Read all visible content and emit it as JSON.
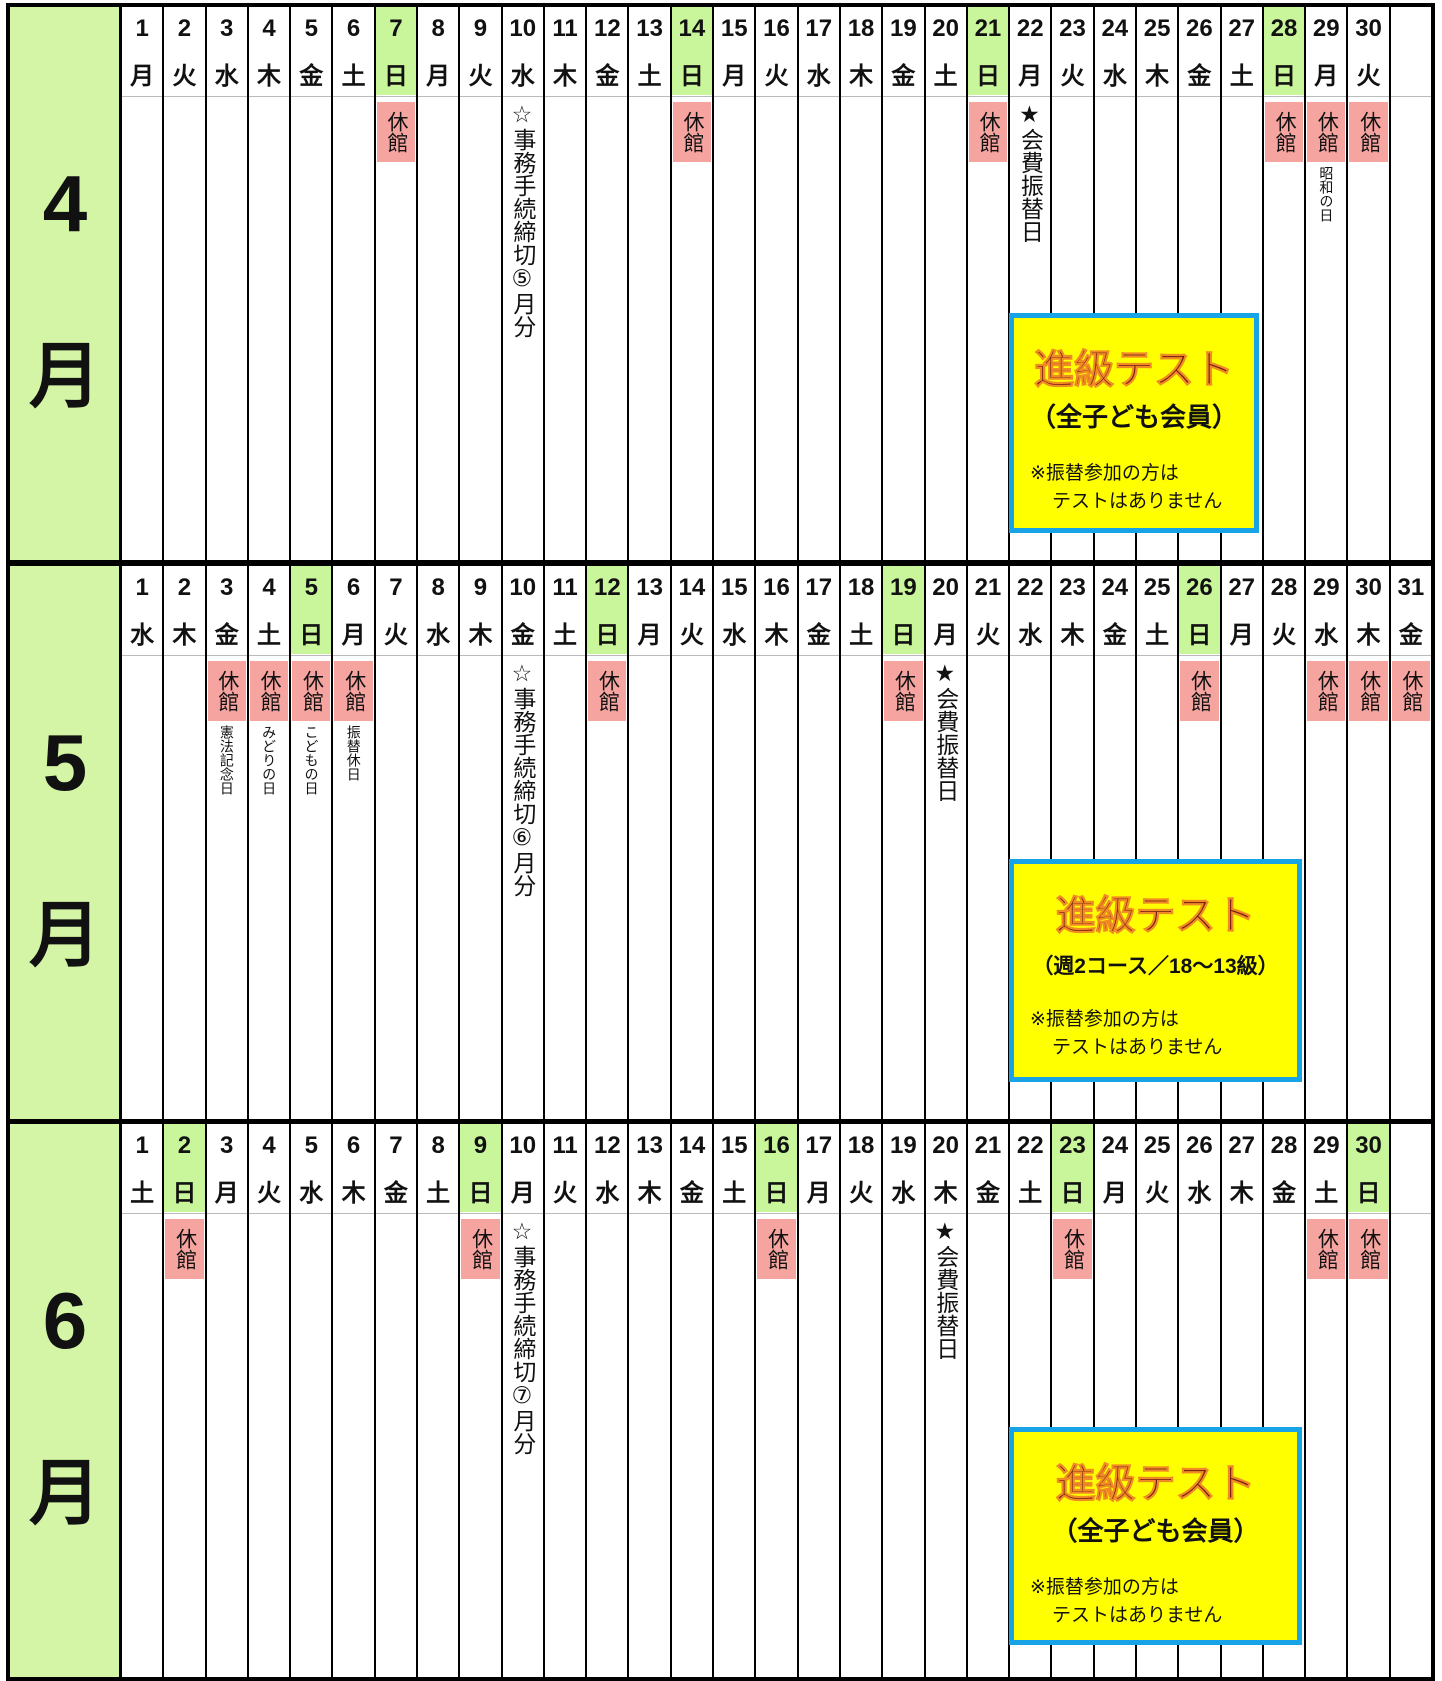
{
  "months": [
    {
      "label": "4",
      "unit": "月",
      "days": [
        {
          "n": "1",
          "w": "月"
        },
        {
          "n": "2",
          "w": "火"
        },
        {
          "n": "3",
          "w": "水"
        },
        {
          "n": "4",
          "w": "木"
        },
        {
          "n": "5",
          "w": "金"
        },
        {
          "n": "6",
          "w": "土"
        },
        {
          "n": "7",
          "w": "日",
          "highlight": true,
          "closed": "休館"
        },
        {
          "n": "8",
          "w": "月"
        },
        {
          "n": "9",
          "w": "火"
        },
        {
          "n": "10",
          "w": "水",
          "note": "☆事務手続締切⑤月分"
        },
        {
          "n": "11",
          "w": "木"
        },
        {
          "n": "12",
          "w": "金"
        },
        {
          "n": "13",
          "w": "土"
        },
        {
          "n": "14",
          "w": "日",
          "highlight": true,
          "closed": "休館"
        },
        {
          "n": "15",
          "w": "月"
        },
        {
          "n": "16",
          "w": "火"
        },
        {
          "n": "17",
          "w": "水"
        },
        {
          "n": "18",
          "w": "木"
        },
        {
          "n": "19",
          "w": "金"
        },
        {
          "n": "20",
          "w": "土"
        },
        {
          "n": "21",
          "w": "日",
          "highlight": true,
          "closed": "休館"
        },
        {
          "n": "22",
          "w": "月",
          "note": "★会費振替日"
        },
        {
          "n": "23",
          "w": "火"
        },
        {
          "n": "24",
          "w": "水"
        },
        {
          "n": "25",
          "w": "木"
        },
        {
          "n": "26",
          "w": "金"
        },
        {
          "n": "27",
          "w": "土"
        },
        {
          "n": "28",
          "w": "日",
          "highlight": true,
          "closed": "休館"
        },
        {
          "n": "29",
          "w": "月",
          "closed": "休館",
          "holiday": "昭和の日"
        },
        {
          "n": "30",
          "w": "火",
          "closed": "休館"
        }
      ],
      "box": {
        "title": "進級テスト",
        "subtitle": "（全子ども会員）",
        "note_lines": [
          "※振替参加の方は",
          "テストはありません"
        ]
      }
    },
    {
      "label": "5",
      "unit": "月",
      "days": [
        {
          "n": "1",
          "w": "水"
        },
        {
          "n": "2",
          "w": "木"
        },
        {
          "n": "3",
          "w": "金",
          "closed": "休館",
          "holiday": "憲法記念日"
        },
        {
          "n": "4",
          "w": "土",
          "closed": "休館",
          "holiday": "みどりの日"
        },
        {
          "n": "5",
          "w": "日",
          "highlight": true,
          "closed": "休館",
          "holiday": "こどもの日"
        },
        {
          "n": "6",
          "w": "月",
          "closed": "休館",
          "holiday": "振替休日"
        },
        {
          "n": "7",
          "w": "火"
        },
        {
          "n": "8",
          "w": "水"
        },
        {
          "n": "9",
          "w": "木"
        },
        {
          "n": "10",
          "w": "金",
          "note": "☆事務手続締切⑥月分"
        },
        {
          "n": "11",
          "w": "土"
        },
        {
          "n": "12",
          "w": "日",
          "highlight": true,
          "closed": "休館"
        },
        {
          "n": "13",
          "w": "月"
        },
        {
          "n": "14",
          "w": "火"
        },
        {
          "n": "15",
          "w": "水"
        },
        {
          "n": "16",
          "w": "木"
        },
        {
          "n": "17",
          "w": "金"
        },
        {
          "n": "18",
          "w": "土"
        },
        {
          "n": "19",
          "w": "日",
          "highlight": true,
          "closed": "休館"
        },
        {
          "n": "20",
          "w": "月",
          "note": "★会費振替日"
        },
        {
          "n": "21",
          "w": "火"
        },
        {
          "n": "22",
          "w": "水"
        },
        {
          "n": "23",
          "w": "木"
        },
        {
          "n": "24",
          "w": "金"
        },
        {
          "n": "25",
          "w": "土"
        },
        {
          "n": "26",
          "w": "日",
          "highlight": true,
          "closed": "休館"
        },
        {
          "n": "27",
          "w": "月"
        },
        {
          "n": "28",
          "w": "火"
        },
        {
          "n": "29",
          "w": "水",
          "closed": "休館"
        },
        {
          "n": "30",
          "w": "木",
          "closed": "休館"
        },
        {
          "n": "31",
          "w": "金",
          "closed": "休館"
        }
      ],
      "box": {
        "title": "進級テスト",
        "subtitle": "（週2コース／18～13級）",
        "note_lines": [
          "※振替参加の方は",
          "テストはありません"
        ]
      }
    },
    {
      "label": "6",
      "unit": "月",
      "days": [
        {
          "n": "1",
          "w": "土"
        },
        {
          "n": "2",
          "w": "日",
          "highlight": true,
          "closed": "休館"
        },
        {
          "n": "3",
          "w": "月"
        },
        {
          "n": "4",
          "w": "火"
        },
        {
          "n": "5",
          "w": "水"
        },
        {
          "n": "6",
          "w": "木"
        },
        {
          "n": "7",
          "w": "金"
        },
        {
          "n": "8",
          "w": "土"
        },
        {
          "n": "9",
          "w": "日",
          "highlight": true,
          "closed": "休館"
        },
        {
          "n": "10",
          "w": "月",
          "note": "☆事務手続締切⑦月分"
        },
        {
          "n": "11",
          "w": "火"
        },
        {
          "n": "12",
          "w": "水"
        },
        {
          "n": "13",
          "w": "木"
        },
        {
          "n": "14",
          "w": "金"
        },
        {
          "n": "15",
          "w": "土"
        },
        {
          "n": "16",
          "w": "日",
          "highlight": true,
          "closed": "休館"
        },
        {
          "n": "17",
          "w": "月"
        },
        {
          "n": "18",
          "w": "火"
        },
        {
          "n": "19",
          "w": "水"
        },
        {
          "n": "20",
          "w": "木",
          "note": "★会費振替日"
        },
        {
          "n": "21",
          "w": "金"
        },
        {
          "n": "22",
          "w": "土"
        },
        {
          "n": "23",
          "w": "日",
          "highlight": true,
          "closed": "休館"
        },
        {
          "n": "24",
          "w": "月"
        },
        {
          "n": "25",
          "w": "火"
        },
        {
          "n": "26",
          "w": "水"
        },
        {
          "n": "27",
          "w": "木"
        },
        {
          "n": "28",
          "w": "金"
        },
        {
          "n": "29",
          "w": "土",
          "closed": "休館"
        },
        {
          "n": "30",
          "w": "日",
          "highlight": true,
          "closed": "休館"
        }
      ],
      "box": {
        "title": "進級テスト",
        "subtitle": "（全子ども会員）",
        "note_lines": [
          "※振替参加の方は",
          "テストはありません"
        ]
      }
    }
  ]
}
